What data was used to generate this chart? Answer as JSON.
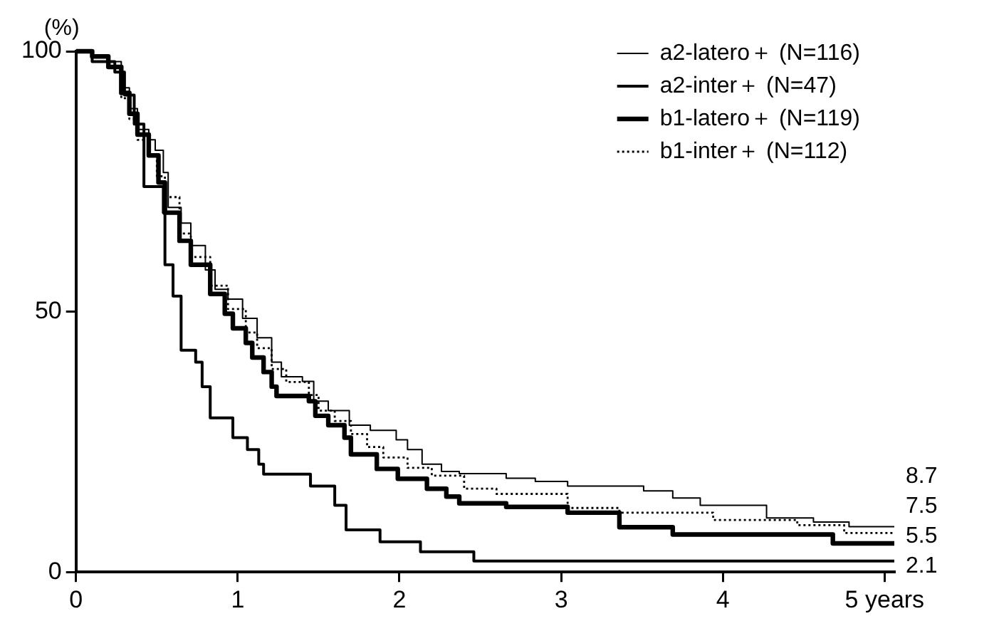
{
  "chart_data": {
    "type": "step",
    "ylabel": "(%)",
    "xlim": [
      0,
      5.06
    ],
    "xticks": [
      0,
      1,
      2,
      3,
      4,
      {
        "value": 5,
        "label": "5 years"
      }
    ],
    "ylim": [
      0,
      100
    ],
    "yticks": [
      0,
      50,
      100
    ],
    "grid": false,
    "legend": "top right",
    "annotations": [
      "8.7",
      "7.5",
      "5.5",
      "2.1"
    ],
    "series": [
      {
        "name": "a2-latero＋ (N=116)",
        "color": "#000000",
        "x": [
          0,
          0.1,
          0.2,
          0.28,
          0.33,
          0.38,
          0.45,
          0.49,
          0.54,
          0.57,
          0.65,
          0.71,
          0.8,
          0.86,
          0.94,
          1.03,
          1.12,
          1.21,
          1.27,
          1.4,
          1.47,
          1.56,
          1.69,
          1.82,
          1.98,
          2.05,
          2.14,
          2.26,
          2.37,
          2.66,
          2.84,
          3.04,
          3.51,
          3.69,
          3.86,
          4.27,
          4.56,
          4.78,
          5.06
        ],
        "values": [
          100,
          99,
          98,
          93,
          89,
          85,
          83,
          81,
          76.7,
          70,
          67,
          62.7,
          58,
          54.3,
          52.4,
          48.7,
          45,
          40.3,
          37.5,
          36.6,
          32.8,
          31,
          28.2,
          27.2,
          25.4,
          23.5,
          20.7,
          19.3,
          18.9,
          18.0,
          17.4,
          16.5,
          15.6,
          14.2,
          12.8,
          10.4,
          9.6,
          8.7,
          8.7
        ]
      },
      {
        "name": "a2-inter＋ (N=47)",
        "color": "#000000",
        "x": [
          0,
          0.1,
          0.24,
          0.3,
          0.36,
          0.42,
          0.54,
          0.55,
          0.6,
          0.65,
          0.74,
          0.78,
          0.83,
          0.97,
          1.06,
          1.13,
          1.16,
          1.45,
          1.6,
          1.67,
          1.88,
          2.13,
          2.46,
          5.06
        ],
        "values": [
          100,
          98,
          96,
          91.6,
          86,
          74,
          69,
          59,
          53,
          42.6,
          40.3,
          35.6,
          29.6,
          25.8,
          23.5,
          20.7,
          18.8,
          16.5,
          12.8,
          8.1,
          5.8,
          3.9,
          2.1,
          2.1
        ]
      },
      {
        "name": "b1-latero＋ (N=119)",
        "color": "#000000",
        "x": [
          0,
          0.1,
          0.2,
          0.28,
          0.33,
          0.38,
          0.45,
          0.51,
          0.55,
          0.64,
          0.71,
          0.83,
          0.92,
          0.97,
          1.05,
          1.09,
          1.16,
          1.21,
          1.24,
          1.44,
          1.48,
          1.56,
          1.66,
          1.7,
          1.86,
          1.99,
          2.17,
          2.29,
          2.37,
          2.66,
          3.04,
          3.36,
          3.69,
          4.68,
          5.06
        ],
        "values": [
          100,
          99,
          97,
          92,
          88,
          84,
          80,
          74.8,
          69,
          63.6,
          59,
          53.4,
          49.6,
          46.8,
          44,
          41.2,
          38.4,
          35.6,
          33.8,
          32.8,
          30,
          28.2,
          25.8,
          22.6,
          19.8,
          17.9,
          16,
          14.5,
          13.2,
          12.5,
          11.4,
          8.6,
          7.2,
          5.5,
          5.5
        ]
      },
      {
        "name": "b1-inter＋ (N=112)",
        "color": "#000000",
        "line_style": "dotted",
        "x": [
          0,
          0.1,
          0.2,
          0.28,
          0.33,
          0.38,
          0.45,
          0.5,
          0.55,
          0.64,
          0.71,
          0.83,
          0.94,
          1.05,
          1.12,
          1.21,
          1.3,
          1.44,
          1.5,
          1.6,
          1.7,
          1.8,
          1.9,
          2.05,
          2.2,
          2.4,
          2.6,
          3.04,
          3.36,
          3.94,
          4.46,
          4.75,
          5.06
        ],
        "values": [
          100,
          98,
          97,
          91,
          87,
          83,
          80,
          76,
          72,
          65,
          60.5,
          55,
          50.5,
          46,
          43,
          39,
          36.5,
          34,
          31,
          29,
          26.5,
          24,
          22,
          20,
          18.5,
          16,
          15,
          12.3,
          11.4,
          10,
          9,
          7.5,
          7.5
        ]
      }
    ]
  }
}
